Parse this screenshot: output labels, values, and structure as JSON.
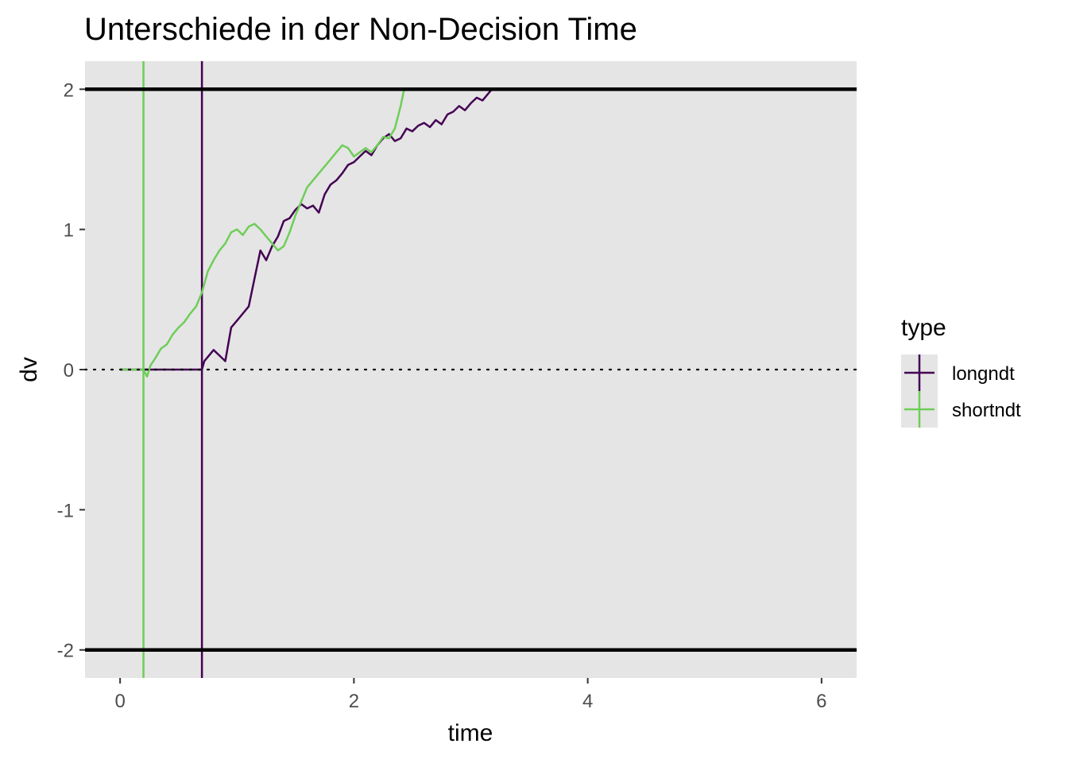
{
  "chart_data": {
    "type": "line",
    "title": "Unterschiede in der Non-Decision Time",
    "xlabel": "time",
    "ylabel": "dv",
    "xlim": [
      -0.3,
      6.3
    ],
    "ylim": [
      -2.2,
      2.2
    ],
    "x_ticks": [
      0,
      2,
      4,
      6
    ],
    "y_ticks": [
      -2,
      -1,
      0,
      1,
      2
    ],
    "x_tick_labels": [
      "0",
      "2",
      "4",
      "6"
    ],
    "y_tick_labels": [
      "-2",
      "-1",
      "0",
      "1",
      "2"
    ],
    "panel_background": "#e5e5e5",
    "grid": false,
    "legend": {
      "title": "type",
      "position": "right",
      "entries": [
        "longndt",
        "shortndt"
      ]
    },
    "reference_lines": {
      "boundaries": [
        2,
        -2
      ],
      "start_point": 0
    },
    "series": [
      {
        "name": "longndt",
        "color": "#440154",
        "ndt": 0.7,
        "x": [
          0.0,
          0.7,
          0.72,
          0.76,
          0.8,
          0.85,
          0.9,
          0.95,
          1.0,
          1.05,
          1.1,
          1.15,
          1.2,
          1.25,
          1.3,
          1.35,
          1.4,
          1.45,
          1.5,
          1.55,
          1.6,
          1.65,
          1.7,
          1.75,
          1.8,
          1.85,
          1.9,
          1.95,
          2.0,
          2.05,
          2.1,
          2.15,
          2.2,
          2.25,
          2.3,
          2.35,
          2.4,
          2.45,
          2.5,
          2.55,
          2.6,
          2.65,
          2.7,
          2.75,
          2.8,
          2.85,
          2.9,
          2.95,
          3.0,
          3.05,
          3.1,
          3.15,
          3.18
        ],
        "values": [
          0.0,
          0.0,
          0.06,
          0.1,
          0.14,
          0.1,
          0.06,
          0.3,
          0.35,
          0.4,
          0.45,
          0.65,
          0.85,
          0.78,
          0.88,
          0.95,
          1.06,
          1.08,
          1.14,
          1.18,
          1.15,
          1.17,
          1.12,
          1.25,
          1.32,
          1.35,
          1.4,
          1.46,
          1.48,
          1.52,
          1.56,
          1.53,
          1.6,
          1.65,
          1.68,
          1.63,
          1.65,
          1.72,
          1.7,
          1.74,
          1.76,
          1.73,
          1.78,
          1.75,
          1.82,
          1.84,
          1.88,
          1.85,
          1.9,
          1.94,
          1.92,
          1.97,
          2.0
        ]
      },
      {
        "name": "shortndt",
        "color": "#6ece58",
        "ndt": 0.2,
        "x": [
          0.0,
          0.2,
          0.23,
          0.26,
          0.3,
          0.35,
          0.4,
          0.45,
          0.5,
          0.55,
          0.6,
          0.65,
          0.7,
          0.75,
          0.8,
          0.85,
          0.9,
          0.95,
          1.0,
          1.05,
          1.1,
          1.15,
          1.2,
          1.25,
          1.3,
          1.35,
          1.4,
          1.45,
          1.5,
          1.55,
          1.6,
          1.65,
          1.7,
          1.75,
          1.8,
          1.85,
          1.9,
          1.95,
          2.0,
          2.05,
          2.1,
          2.15,
          2.2,
          2.25,
          2.3,
          2.35,
          2.4,
          2.43
        ],
        "values": [
          0.0,
          0.0,
          -0.05,
          0.03,
          0.08,
          0.15,
          0.18,
          0.25,
          0.3,
          0.34,
          0.4,
          0.45,
          0.55,
          0.7,
          0.78,
          0.85,
          0.9,
          0.98,
          1.0,
          0.96,
          1.02,
          1.04,
          1.0,
          0.95,
          0.9,
          0.85,
          0.88,
          0.98,
          1.1,
          1.2,
          1.3,
          1.35,
          1.4,
          1.45,
          1.5,
          1.55,
          1.6,
          1.58,
          1.52,
          1.55,
          1.58,
          1.55,
          1.6,
          1.66,
          1.65,
          1.72,
          1.88,
          2.0
        ]
      }
    ]
  }
}
